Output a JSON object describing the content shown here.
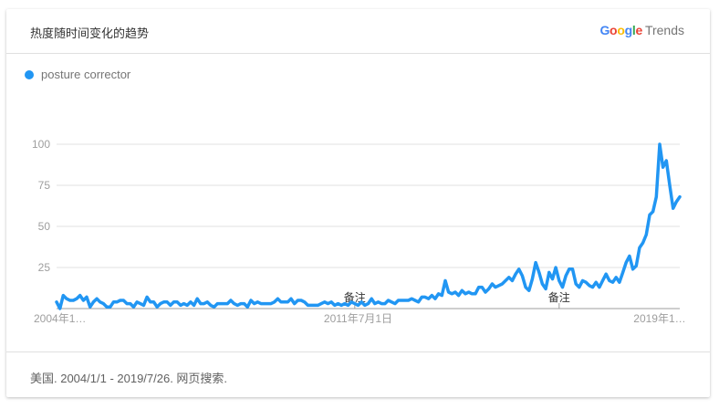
{
  "header": {
    "title": "热度随时间变化的趋势",
    "brand_google": "Google",
    "brand_trends": "Trends"
  },
  "legend": {
    "label": "posture corrector",
    "color": "#2196f3"
  },
  "footer": {
    "text": "美国. 2004/1/1 - 2019/7/26. 网页搜索."
  },
  "annotations": [
    {
      "label": "备注",
      "date": "2011-06"
    },
    {
      "label": "备注",
      "date": "2016-07"
    }
  ],
  "chart_data": {
    "type": "line",
    "title": "",
    "xlabel": "",
    "ylabel": "",
    "ylim": [
      0,
      100
    ],
    "yticks": [
      25,
      50,
      75,
      100
    ],
    "grid": true,
    "legend_position": "top-left",
    "x_tick_labels": [
      {
        "label": "2004年1…",
        "date": "2004-01"
      },
      {
        "label": "2011年7月1日",
        "date": "2011-07"
      },
      {
        "label": "2019年1…",
        "date": "2019-01"
      }
    ],
    "x_start": "2004-01",
    "x_interval": "month",
    "series": [
      {
        "name": "posture corrector",
        "color": "#2196f3",
        "values": [
          4,
          0,
          8,
          6,
          5,
          5,
          6,
          8,
          5,
          7,
          1,
          4,
          6,
          4,
          3,
          1,
          1,
          4,
          4,
          5,
          5,
          3,
          3,
          1,
          4,
          3,
          2,
          7,
          4,
          4,
          1,
          3,
          4,
          4,
          2,
          4,
          4,
          2,
          3,
          2,
          4,
          2,
          6,
          3,
          3,
          4,
          2,
          1,
          3,
          3,
          3,
          3,
          5,
          3,
          2,
          3,
          3,
          1,
          5,
          3,
          4,
          3,
          3,
          3,
          3,
          4,
          6,
          4,
          4,
          4,
          6,
          3,
          5,
          5,
          4,
          2,
          2,
          2,
          2,
          3,
          4,
          3,
          4,
          2,
          3,
          2,
          3,
          2,
          4,
          3,
          2,
          4,
          2,
          3,
          6,
          3,
          4,
          3,
          3,
          5,
          4,
          3,
          5,
          5,
          5,
          5,
          6,
          5,
          4,
          7,
          7,
          6,
          8,
          6,
          9,
          8,
          17,
          10,
          9,
          10,
          8,
          11,
          9,
          10,
          9,
          9,
          13,
          13,
          10,
          12,
          15,
          13,
          14,
          15,
          17,
          19,
          17,
          21,
          24,
          20,
          13,
          11,
          18,
          28,
          22,
          15,
          12,
          22,
          18,
          25,
          17,
          13,
          20,
          24,
          24,
          15,
          13,
          17,
          16,
          14,
          13,
          16,
          13,
          17,
          21,
          17,
          16,
          19,
          16,
          22,
          28,
          32,
          24,
          26,
          37,
          40,
          45,
          57,
          59,
          68,
          100,
          86,
          90,
          75,
          61,
          65,
          68
        ]
      }
    ]
  }
}
